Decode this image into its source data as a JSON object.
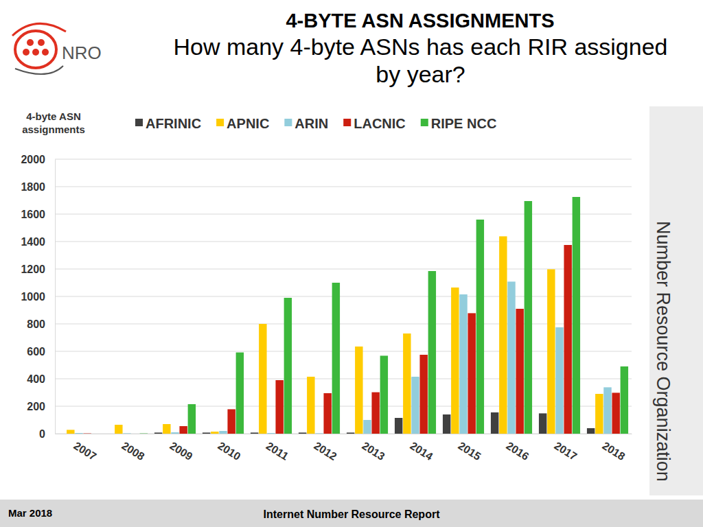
{
  "chart_data": {
    "type": "bar",
    "title": "4-BYTE ASN ASSIGNMENTS",
    "subtitle": "How many 4-byte ASNs has each RIR assigned by year?",
    "y_label": "4-byte ASN assignments",
    "categories": [
      "2007",
      "2008",
      "2009",
      "2010",
      "2011",
      "2012",
      "2013",
      "2014",
      "2015",
      "2016",
      "2017",
      "2018"
    ],
    "series": [
      {
        "name": "AFRINIC",
        "color": "#404040",
        "values": [
          0,
          0,
          8,
          8,
          8,
          8,
          8,
          115,
          140,
          155,
          148,
          40
        ]
      },
      {
        "name": "APNIC",
        "color": "#ffcc00",
        "values": [
          28,
          65,
          70,
          15,
          800,
          415,
          635,
          730,
          1065,
          1438,
          1198,
          290
        ]
      },
      {
        "name": "ARIN",
        "color": "#92cddc",
        "values": [
          5,
          3,
          10,
          20,
          5,
          3,
          100,
          415,
          1015,
          1108,
          775,
          338
        ]
      },
      {
        "name": "LACNIC",
        "color": "#cc1e10",
        "values": [
          2,
          0,
          55,
          178,
          390,
          295,
          302,
          575,
          878,
          910,
          1375,
          298
        ]
      },
      {
        "name": "RIPE NCC",
        "color": "#3cb83c",
        "values": [
          0,
          2,
          215,
          592,
          990,
          1100,
          568,
          1185,
          1560,
          1695,
          1725,
          490
        ]
      }
    ],
    "ylim": [
      0,
      2000
    ],
    "yticks": [
      0,
      200,
      400,
      600,
      800,
      1000,
      1200,
      1400,
      1600,
      1800,
      2000
    ],
    "grid": true,
    "legend": "top"
  },
  "page": {
    "logo_text": "NRO",
    "side_text": "Number Resource Organization",
    "footer_left": "Mar 2018",
    "footer_center": "Internet Number Resource Report"
  }
}
